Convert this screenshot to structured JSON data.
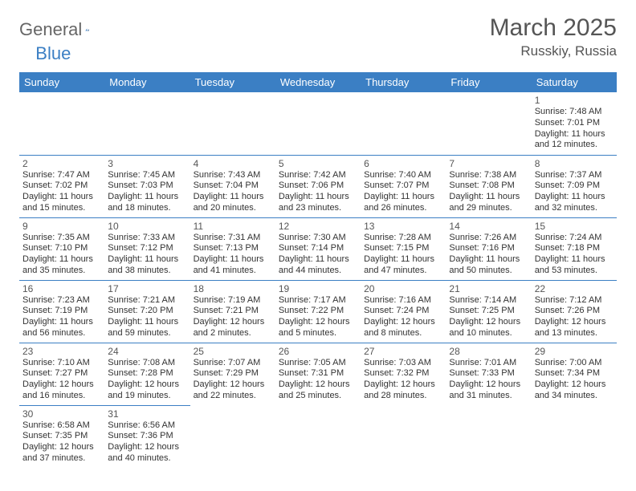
{
  "brand": {
    "part1": "General",
    "part2": "Blue"
  },
  "title": "March 2025",
  "location": "Russkiy, Russia",
  "colors": {
    "header_bg": "#3b7fc4",
    "header_fg": "#ffffff",
    "border": "#3b7fc4",
    "text": "#333333"
  },
  "day_headers": [
    "Sunday",
    "Monday",
    "Tuesday",
    "Wednesday",
    "Thursday",
    "Friday",
    "Saturday"
  ],
  "weeks": [
    [
      null,
      null,
      null,
      null,
      null,
      null,
      {
        "n": "1",
        "sr": "Sunrise: 7:48 AM",
        "ss": "Sunset: 7:01 PM",
        "d1": "Daylight: 11 hours",
        "d2": "and 12 minutes."
      }
    ],
    [
      {
        "n": "2",
        "sr": "Sunrise: 7:47 AM",
        "ss": "Sunset: 7:02 PM",
        "d1": "Daylight: 11 hours",
        "d2": "and 15 minutes."
      },
      {
        "n": "3",
        "sr": "Sunrise: 7:45 AM",
        "ss": "Sunset: 7:03 PM",
        "d1": "Daylight: 11 hours",
        "d2": "and 18 minutes."
      },
      {
        "n": "4",
        "sr": "Sunrise: 7:43 AM",
        "ss": "Sunset: 7:04 PM",
        "d1": "Daylight: 11 hours",
        "d2": "and 20 minutes."
      },
      {
        "n": "5",
        "sr": "Sunrise: 7:42 AM",
        "ss": "Sunset: 7:06 PM",
        "d1": "Daylight: 11 hours",
        "d2": "and 23 minutes."
      },
      {
        "n": "6",
        "sr": "Sunrise: 7:40 AM",
        "ss": "Sunset: 7:07 PM",
        "d1": "Daylight: 11 hours",
        "d2": "and 26 minutes."
      },
      {
        "n": "7",
        "sr": "Sunrise: 7:38 AM",
        "ss": "Sunset: 7:08 PM",
        "d1": "Daylight: 11 hours",
        "d2": "and 29 minutes."
      },
      {
        "n": "8",
        "sr": "Sunrise: 7:37 AM",
        "ss": "Sunset: 7:09 PM",
        "d1": "Daylight: 11 hours",
        "d2": "and 32 minutes."
      }
    ],
    [
      {
        "n": "9",
        "sr": "Sunrise: 7:35 AM",
        "ss": "Sunset: 7:10 PM",
        "d1": "Daylight: 11 hours",
        "d2": "and 35 minutes."
      },
      {
        "n": "10",
        "sr": "Sunrise: 7:33 AM",
        "ss": "Sunset: 7:12 PM",
        "d1": "Daylight: 11 hours",
        "d2": "and 38 minutes."
      },
      {
        "n": "11",
        "sr": "Sunrise: 7:31 AM",
        "ss": "Sunset: 7:13 PM",
        "d1": "Daylight: 11 hours",
        "d2": "and 41 minutes."
      },
      {
        "n": "12",
        "sr": "Sunrise: 7:30 AM",
        "ss": "Sunset: 7:14 PM",
        "d1": "Daylight: 11 hours",
        "d2": "and 44 minutes."
      },
      {
        "n": "13",
        "sr": "Sunrise: 7:28 AM",
        "ss": "Sunset: 7:15 PM",
        "d1": "Daylight: 11 hours",
        "d2": "and 47 minutes."
      },
      {
        "n": "14",
        "sr": "Sunrise: 7:26 AM",
        "ss": "Sunset: 7:16 PM",
        "d1": "Daylight: 11 hours",
        "d2": "and 50 minutes."
      },
      {
        "n": "15",
        "sr": "Sunrise: 7:24 AM",
        "ss": "Sunset: 7:18 PM",
        "d1": "Daylight: 11 hours",
        "d2": "and 53 minutes."
      }
    ],
    [
      {
        "n": "16",
        "sr": "Sunrise: 7:23 AM",
        "ss": "Sunset: 7:19 PM",
        "d1": "Daylight: 11 hours",
        "d2": "and 56 minutes."
      },
      {
        "n": "17",
        "sr": "Sunrise: 7:21 AM",
        "ss": "Sunset: 7:20 PM",
        "d1": "Daylight: 11 hours",
        "d2": "and 59 minutes."
      },
      {
        "n": "18",
        "sr": "Sunrise: 7:19 AM",
        "ss": "Sunset: 7:21 PM",
        "d1": "Daylight: 12 hours",
        "d2": "and 2 minutes."
      },
      {
        "n": "19",
        "sr": "Sunrise: 7:17 AM",
        "ss": "Sunset: 7:22 PM",
        "d1": "Daylight: 12 hours",
        "d2": "and 5 minutes."
      },
      {
        "n": "20",
        "sr": "Sunrise: 7:16 AM",
        "ss": "Sunset: 7:24 PM",
        "d1": "Daylight: 12 hours",
        "d2": "and 8 minutes."
      },
      {
        "n": "21",
        "sr": "Sunrise: 7:14 AM",
        "ss": "Sunset: 7:25 PM",
        "d1": "Daylight: 12 hours",
        "d2": "and 10 minutes."
      },
      {
        "n": "22",
        "sr": "Sunrise: 7:12 AM",
        "ss": "Sunset: 7:26 PM",
        "d1": "Daylight: 12 hours",
        "d2": "and 13 minutes."
      }
    ],
    [
      {
        "n": "23",
        "sr": "Sunrise: 7:10 AM",
        "ss": "Sunset: 7:27 PM",
        "d1": "Daylight: 12 hours",
        "d2": "and 16 minutes."
      },
      {
        "n": "24",
        "sr": "Sunrise: 7:08 AM",
        "ss": "Sunset: 7:28 PM",
        "d1": "Daylight: 12 hours",
        "d2": "and 19 minutes."
      },
      {
        "n": "25",
        "sr": "Sunrise: 7:07 AM",
        "ss": "Sunset: 7:29 PM",
        "d1": "Daylight: 12 hours",
        "d2": "and 22 minutes."
      },
      {
        "n": "26",
        "sr": "Sunrise: 7:05 AM",
        "ss": "Sunset: 7:31 PM",
        "d1": "Daylight: 12 hours",
        "d2": "and 25 minutes."
      },
      {
        "n": "27",
        "sr": "Sunrise: 7:03 AM",
        "ss": "Sunset: 7:32 PM",
        "d1": "Daylight: 12 hours",
        "d2": "and 28 minutes."
      },
      {
        "n": "28",
        "sr": "Sunrise: 7:01 AM",
        "ss": "Sunset: 7:33 PM",
        "d1": "Daylight: 12 hours",
        "d2": "and 31 minutes."
      },
      {
        "n": "29",
        "sr": "Sunrise: 7:00 AM",
        "ss": "Sunset: 7:34 PM",
        "d1": "Daylight: 12 hours",
        "d2": "and 34 minutes."
      }
    ],
    [
      {
        "n": "30",
        "sr": "Sunrise: 6:58 AM",
        "ss": "Sunset: 7:35 PM",
        "d1": "Daylight: 12 hours",
        "d2": "and 37 minutes."
      },
      {
        "n": "31",
        "sr": "Sunrise: 6:56 AM",
        "ss": "Sunset: 7:36 PM",
        "d1": "Daylight: 12 hours",
        "d2": "and 40 minutes."
      },
      null,
      null,
      null,
      null,
      null
    ]
  ]
}
